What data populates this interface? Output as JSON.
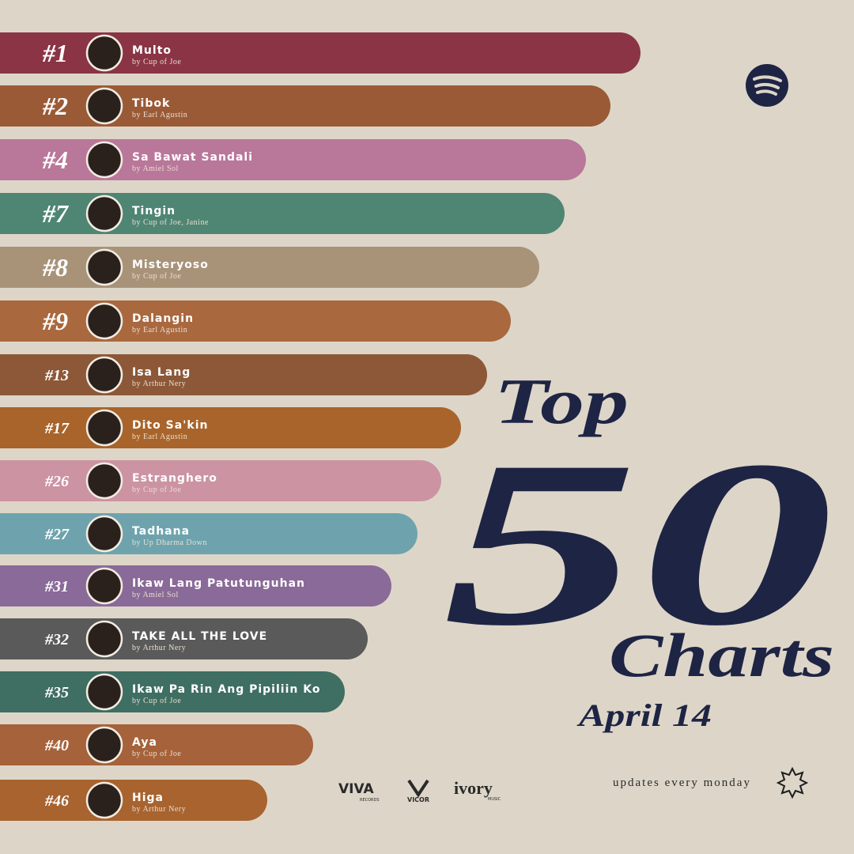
{
  "entries": [
    {
      "rank": "#1",
      "title": "Multo",
      "artist": "by Cup of Joe"
    },
    {
      "rank": "#2",
      "title": "Tibok",
      "artist": "by Earl Agustin"
    },
    {
      "rank": "#4",
      "title": "Sa Bawat Sandali",
      "artist": "by Amiel Sol"
    },
    {
      "rank": "#7",
      "title": "Tingin",
      "artist": "by Cup of Joe, Janine"
    },
    {
      "rank": "#8",
      "title": "Misteryoso",
      "artist": "by Cup of Joe"
    },
    {
      "rank": "#9",
      "title": "Dalangin",
      "artist": "by Earl Agustin"
    },
    {
      "rank": "#13",
      "title": "Isa Lang",
      "artist": "by Arthur Nery"
    },
    {
      "rank": "#17",
      "title": "Dito Sa'kin",
      "artist": "by Earl Agustin"
    },
    {
      "rank": "#26",
      "title": "Estranghero",
      "artist": "by Cup of Joe"
    },
    {
      "rank": "#27",
      "title": "Tadhana",
      "artist": "by Up Dharma Down"
    },
    {
      "rank": "#31",
      "title": "Ikaw Lang Patutunguhan",
      "artist": "by Amiel Sol"
    },
    {
      "rank": "#32",
      "title": "TAKE ALL THE LOVE",
      "artist": "by Arthur Nery"
    },
    {
      "rank": "#35",
      "title": "Ikaw Pa Rin Ang Pipiliin Ko",
      "artist": "by Cup of Joe"
    },
    {
      "rank": "#40",
      "title": "Aya",
      "artist": "by Cup of Joe"
    },
    {
      "rank": "#46",
      "title": "Higa",
      "artist": "by Arthur Nery"
    }
  ],
  "heading": {
    "top": "Top",
    "number": "50",
    "charts": "Charts",
    "date": "April 14"
  },
  "footer": {
    "note": "updates every monday",
    "logos": [
      "VIVA",
      "RECORDS",
      "VICOR",
      "ivory",
      "MUSIC"
    ]
  }
}
